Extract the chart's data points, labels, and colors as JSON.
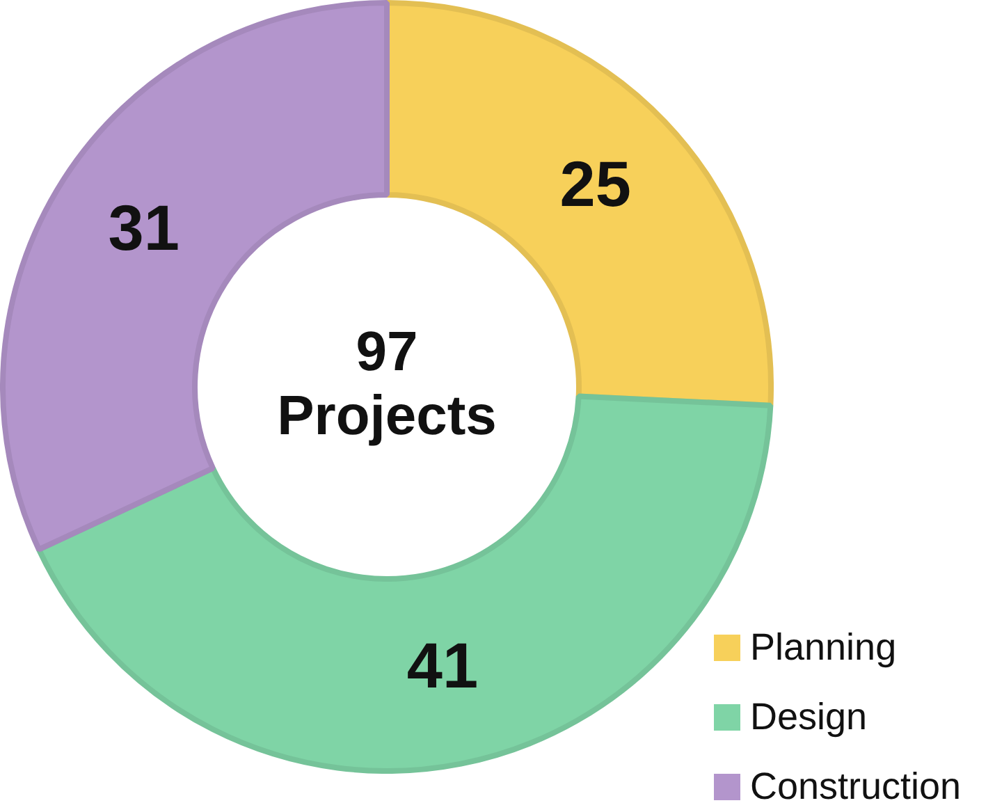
{
  "chart_data": {
    "type": "donut",
    "categories": [
      "Planning",
      "Design",
      "Construction"
    ],
    "values": [
      25,
      41,
      31
    ],
    "colors": [
      "#f7d05a",
      "#7fd4a6",
      "#b395cc"
    ],
    "data_labels": true,
    "legend": "bottom right",
    "annotations": [
      "97 Projects"
    ]
  }
}
